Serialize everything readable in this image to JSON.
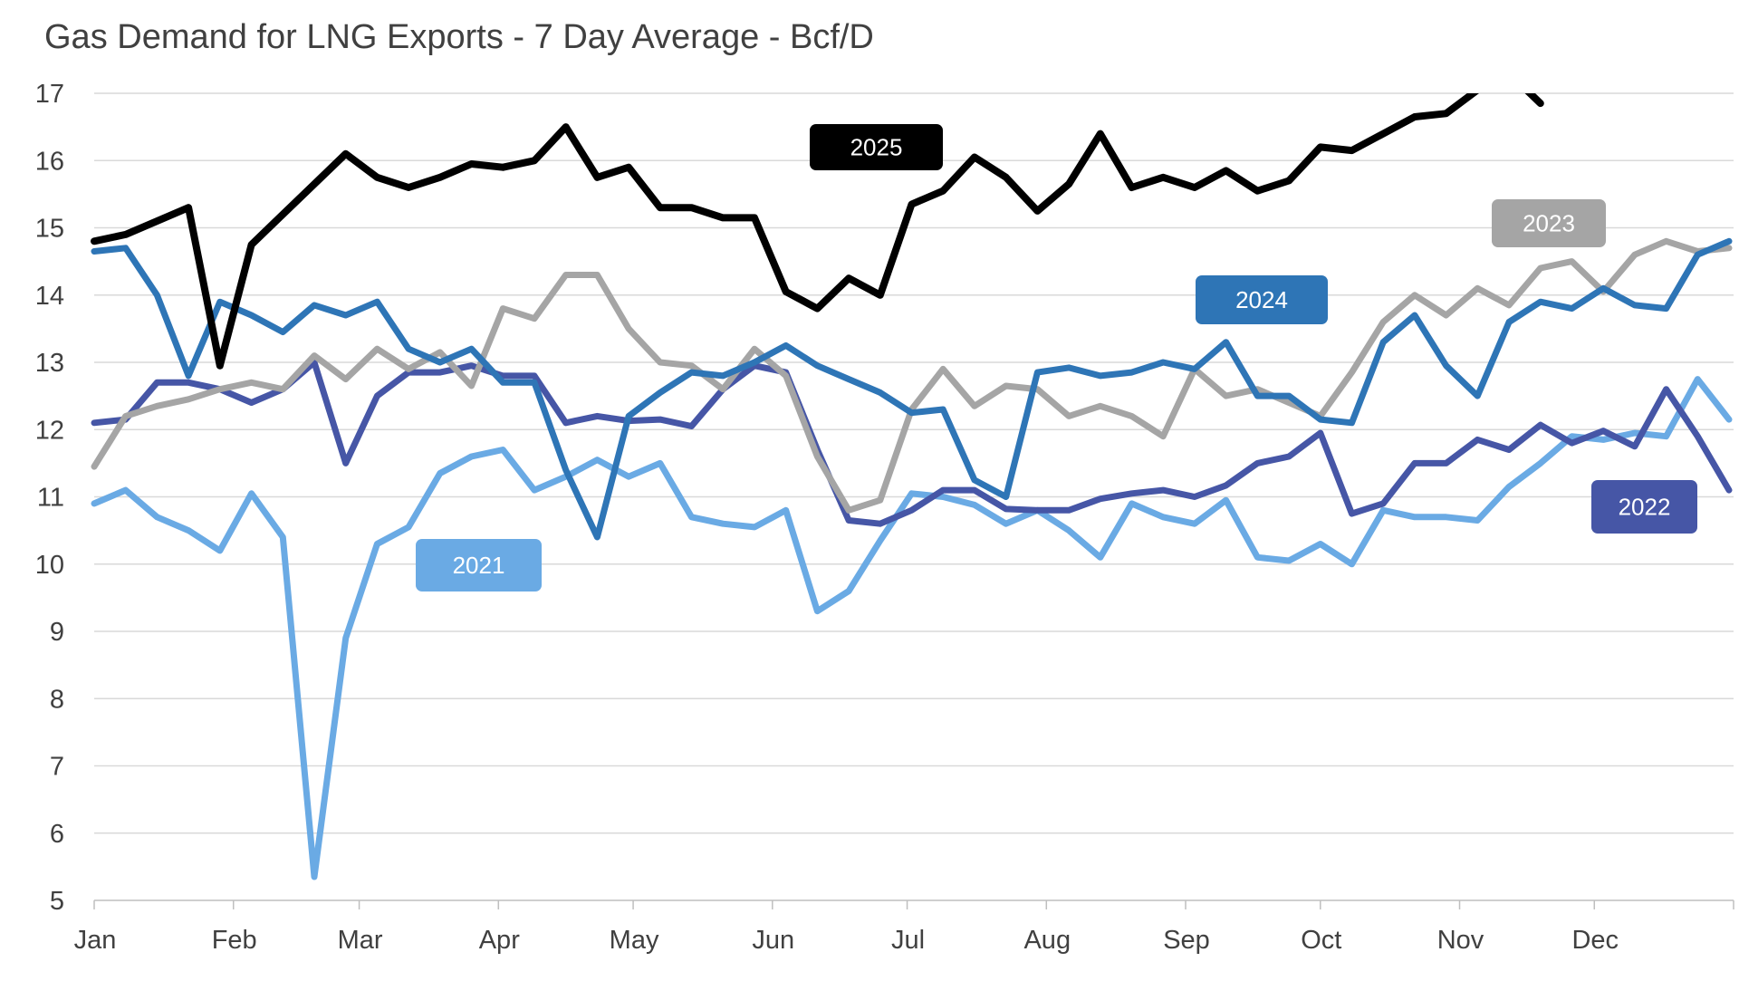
{
  "chart_data": {
    "type": "line",
    "title": "Gas Demand for LNG Exports - 7 Day Average - Bcf/D",
    "xlabel": "",
    "ylabel": "",
    "ylim": [
      5,
      17
    ],
    "yticks": [
      5,
      6,
      7,
      8,
      9,
      10,
      11,
      12,
      13,
      14,
      15,
      16,
      17
    ],
    "xticks": [
      "Jan",
      "Feb",
      "Mar",
      "Apr",
      "May",
      "Jun",
      "Jul",
      "Aug",
      "Sep",
      "Oct",
      "Nov",
      "Dec"
    ],
    "grid": true,
    "legend": "inline labels",
    "x": [
      "01-01",
      "01-08",
      "01-15",
      "01-22",
      "01-29",
      "02-05",
      "02-12",
      "02-19",
      "02-26",
      "03-05",
      "03-12",
      "03-19",
      "03-26",
      "04-02",
      "04-09",
      "04-16",
      "04-23",
      "04-30",
      "05-07",
      "05-14",
      "05-21",
      "05-28",
      "06-04",
      "06-11",
      "06-18",
      "06-25",
      "07-02",
      "07-09",
      "07-16",
      "07-23",
      "07-30",
      "08-06",
      "08-13",
      "08-20",
      "08-27",
      "09-03",
      "09-10",
      "09-17",
      "09-24",
      "10-01",
      "10-08",
      "10-15",
      "10-22",
      "10-29",
      "11-05",
      "11-12",
      "11-19",
      "11-26",
      "12-03",
      "12-10",
      "12-17",
      "12-24",
      "12-31"
    ],
    "series": [
      {
        "name": "2021",
        "color": "#6aaae4",
        "values": [
          10.9,
          11.1,
          10.7,
          10.5,
          10.2,
          11.05,
          10.4,
          5.35,
          8.9,
          10.3,
          10.55,
          11.35,
          11.6,
          11.7,
          11.1,
          11.3,
          11.55,
          11.3,
          11.5,
          10.7,
          10.6,
          10.55,
          10.8,
          9.3,
          9.6,
          10.35,
          11.05,
          11.0,
          10.88,
          10.6,
          10.8,
          10.5,
          10.1,
          10.9,
          10.7,
          10.6,
          10.95,
          10.1,
          10.05,
          10.3,
          10.0,
          10.8,
          10.7,
          10.7,
          10.65,
          11.15,
          11.5,
          11.9,
          11.85,
          11.95,
          11.9,
          12.75,
          12.15
        ]
      },
      {
        "name": "2022",
        "color": "#4656a6",
        "values": [
          12.1,
          12.15,
          12.7,
          12.7,
          12.6,
          12.4,
          12.6,
          13.0,
          11.5,
          12.5,
          12.85,
          12.85,
          12.95,
          12.8,
          12.8,
          12.1,
          12.2,
          12.13,
          12.15,
          12.05,
          12.6,
          12.95,
          12.85,
          11.7,
          10.65,
          10.6,
          10.8,
          11.1,
          11.1,
          10.82,
          10.8,
          10.8,
          10.97,
          11.05,
          11.1,
          11.0,
          11.17,
          11.5,
          11.6,
          11.95,
          10.75,
          10.9,
          11.5,
          11.5,
          11.85,
          11.7,
          12.07,
          11.8,
          11.98,
          11.75,
          12.6,
          11.9,
          11.1
        ]
      },
      {
        "name": "2023",
        "color": "#a5a5a5",
        "values": [
          11.45,
          12.2,
          12.35,
          12.45,
          12.6,
          12.7,
          12.6,
          13.1,
          12.75,
          13.2,
          12.9,
          13.15,
          12.65,
          13.8,
          13.65,
          14.3,
          14.3,
          13.5,
          13.0,
          12.95,
          12.6,
          13.2,
          12.8,
          11.6,
          10.8,
          10.95,
          12.3,
          12.9,
          12.35,
          12.65,
          12.6,
          12.2,
          12.35,
          12.2,
          11.9,
          12.9,
          12.5,
          12.6,
          12.4,
          12.2,
          12.85,
          13.6,
          14.0,
          13.7,
          14.1,
          13.85,
          14.4,
          14.5,
          14.05,
          14.6,
          14.8,
          14.65,
          14.7
        ]
      },
      {
        "name": "2024",
        "color": "#2e75b6",
        "values": [
          14.65,
          14.7,
          14.0,
          12.8,
          13.9,
          13.7,
          13.45,
          13.85,
          13.7,
          13.9,
          13.2,
          13.0,
          13.2,
          12.7,
          12.7,
          11.4,
          10.4,
          12.2,
          12.55,
          12.85,
          12.8,
          13.0,
          13.25,
          12.95,
          12.75,
          12.55,
          12.25,
          12.3,
          11.25,
          11.0,
          12.85,
          12.92,
          12.8,
          12.85,
          13.0,
          12.9,
          13.3,
          12.5,
          12.5,
          12.15,
          12.1,
          13.3,
          13.7,
          12.95,
          12.5,
          13.6,
          13.9,
          13.8,
          14.1,
          13.85,
          13.8,
          14.6,
          14.8
        ]
      },
      {
        "name": "2025",
        "color": "#000000",
        "values": [
          14.8,
          14.9,
          15.1,
          15.3,
          12.95,
          14.75,
          15.2,
          15.65,
          16.1,
          15.75,
          15.6,
          15.75,
          15.95,
          15.9,
          16.0,
          16.5,
          15.75,
          15.9,
          15.3,
          15.3,
          15.15,
          15.15,
          14.05,
          13.8,
          14.25,
          14.0,
          15.35,
          15.55,
          16.05,
          15.75,
          15.25,
          15.65,
          16.4,
          15.6,
          15.75,
          15.6,
          15.85,
          15.55,
          15.7,
          16.2,
          16.15,
          16.4,
          16.65,
          16.7,
          17.05,
          17.3,
          16.85,
          null,
          null,
          null,
          null,
          null,
          null
        ]
      }
    ]
  }
}
